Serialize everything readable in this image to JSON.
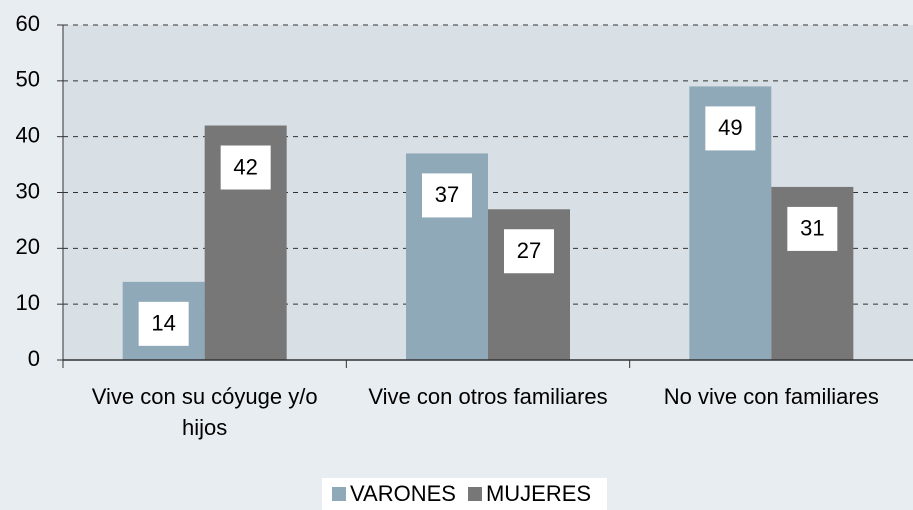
{
  "chart_data": {
    "type": "bar",
    "categories": [
      "Vive con su cóyuge y/o hijos",
      "Vive con otros familiares",
      "No vive con familiares"
    ],
    "series": [
      {
        "name": "VARONES",
        "color": "#8fa9b8",
        "values": [
          14,
          37,
          49
        ]
      },
      {
        "name": "MUJERES",
        "color": "#777777",
        "values": [
          42,
          27,
          31
        ]
      }
    ],
    "ylim": [
      0,
      60
    ],
    "yticks": [
      0,
      10,
      20,
      30,
      40,
      50,
      60
    ],
    "grid": true,
    "legend": "bottom"
  }
}
